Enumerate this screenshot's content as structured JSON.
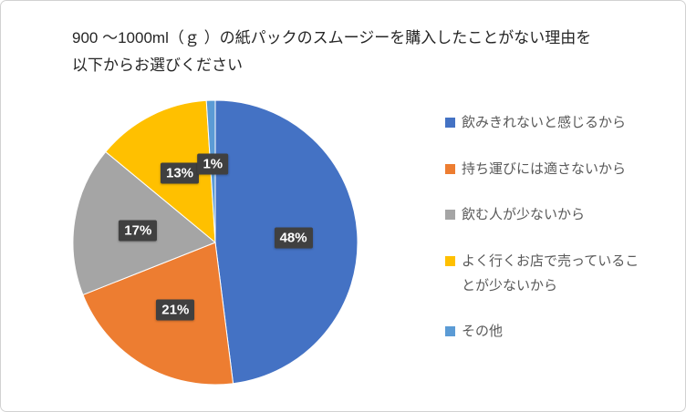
{
  "chart_data": {
    "type": "pie",
    "title": "900 〜1000ml（ｇ ）の紙パックのスムージーを購入したことがない理由を\n以下からお選びください",
    "legend_position": "right",
    "start_angle_deg": 0,
    "direction": "clockwise",
    "label_style": {
      "background": "#404040",
      "text_color": "#FFFFFF"
    },
    "slices": [
      {
        "label": "飲みきれないと感じるから",
        "value": 48,
        "pct_label": "48%",
        "color": "#4472C4"
      },
      {
        "label": "持ち運びには適さないから",
        "value": 21,
        "pct_label": "21%",
        "color": "#ED7D31"
      },
      {
        "label": "飲む人が少ないから",
        "value": 17,
        "pct_label": "17%",
        "color": "#A5A5A5"
      },
      {
        "label": "よく行くお店で売っていることが少ないから",
        "value": 13,
        "pct_label": "13%",
        "color": "#FFC000"
      },
      {
        "label": "その他",
        "value": 1,
        "pct_label": "1%",
        "color": "#5B9BD5"
      }
    ]
  }
}
